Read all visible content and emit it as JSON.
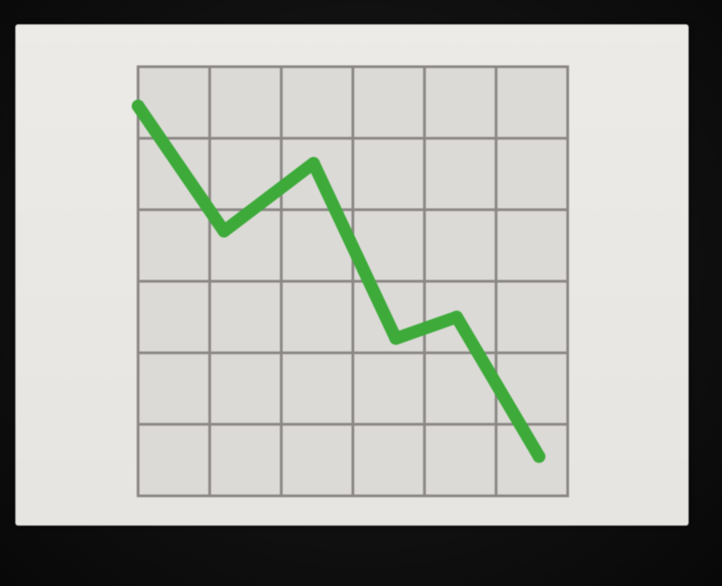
{
  "chart_data": {
    "type": "line",
    "title": "",
    "xlabel": "",
    "ylabel": "",
    "x": [
      0,
      1.2,
      2.45,
      3.6,
      4.45,
      5.6
    ],
    "series": [
      {
        "values": [
          5.45,
          3.7,
          4.65,
          2.2,
          2.5,
          0.55
        ]
      }
    ],
    "xlim": [
      0,
      6
    ],
    "ylim": [
      0,
      6
    ],
    "grid": true,
    "legend": "none",
    "colors": {
      "line": "#3daa3a",
      "grid": "#8a8784",
      "plot_background": "#dcdad7",
      "card_background": "#e8e7e4"
    }
  }
}
